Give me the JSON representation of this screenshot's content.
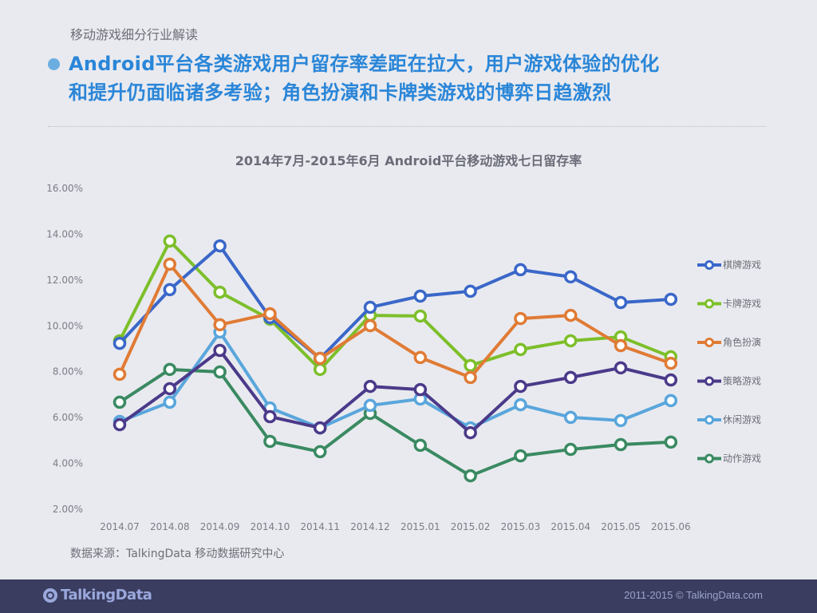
{
  "header": {
    "section_label": "移动游戏细分行业解读",
    "headline_line1": "Android平台各类游戏用户留存率差距在拉大，用户游戏体验的优化",
    "headline_line2": "和提升仍面临诸多考验；角色扮演和卡牌类游戏的博弈日趋激烈"
  },
  "source": "数据来源：TalkingData 移动数据研究中心",
  "footer": {
    "logo_text": "TalkingData",
    "copyright": "2011-2015 © TalkingData.com"
  },
  "chart_data": {
    "type": "line",
    "title": "2014年7月-2015年6月 Android平台移动游戏七日留存率",
    "xlabel": "",
    "ylabel": "",
    "ylim": [
      2,
      16
    ],
    "yticks": [
      "2.00%",
      "4.00%",
      "6.00%",
      "8.00%",
      "10.00%",
      "12.00%",
      "14.00%",
      "16.00%"
    ],
    "grid": false,
    "legend_position": "right",
    "categories": [
      "2014.07",
      "2014.08",
      "2014.09",
      "2014.10",
      "2014.11",
      "2014.12",
      "2015.01",
      "2015.02",
      "2015.03",
      "2015.04",
      "2015.05",
      "2015.06"
    ],
    "series": [
      {
        "name": "棋牌游戏",
        "color": "#3a67c9",
        "values": [
          9.24,
          11.58,
          13.49,
          10.36,
          8.58,
          10.81,
          11.3,
          11.51,
          12.45,
          12.14,
          11.02,
          11.16
        ]
      },
      {
        "name": "卡牌游戏",
        "color": "#7dbf2a",
        "values": [
          9.35,
          13.7,
          11.47,
          10.29,
          8.1,
          10.46,
          10.43,
          8.27,
          8.97,
          9.35,
          9.52,
          8.65
        ]
      },
      {
        "name": "角色扮演",
        "color": "#e07b35",
        "values": [
          7.89,
          12.69,
          10.05,
          10.53,
          8.58,
          10.01,
          8.62,
          7.75,
          10.32,
          10.46,
          9.14,
          8.37
        ]
      },
      {
        "name": "策略游戏",
        "color": "#4b3a8a",
        "values": [
          5.69,
          7.26,
          8.93,
          6.04,
          5.55,
          7.36,
          7.22,
          5.34,
          7.36,
          7.75,
          8.17,
          7.64
        ]
      },
      {
        "name": "休闲游戏",
        "color": "#59a6dc",
        "values": [
          5.83,
          6.67,
          9.73,
          6.42,
          5.55,
          6.53,
          6.81,
          5.55,
          6.56,
          6.01,
          5.87,
          6.74
        ]
      },
      {
        "name": "动作游戏",
        "color": "#3a8a62",
        "values": [
          6.67,
          8.1,
          7.99,
          4.96,
          4.51,
          6.18,
          4.79,
          3.46,
          4.33,
          4.61,
          4.82,
          4.93
        ]
      }
    ]
  }
}
